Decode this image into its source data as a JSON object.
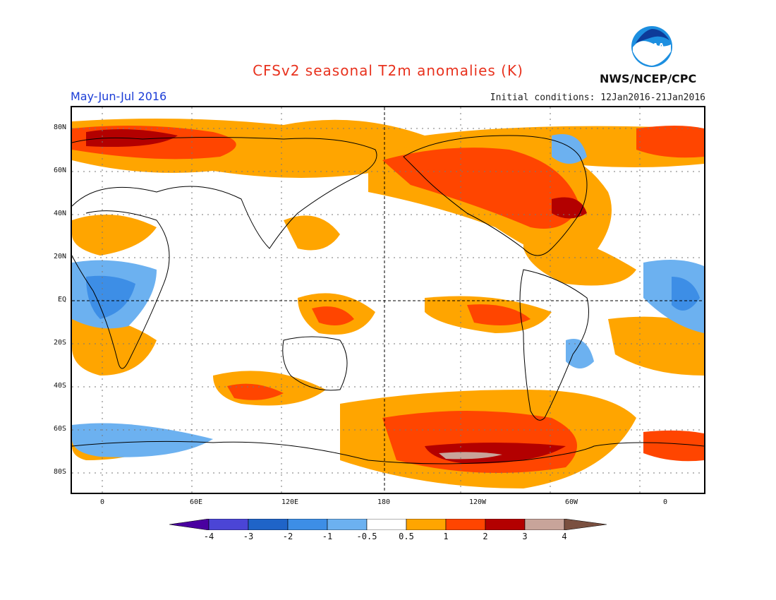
{
  "header": {
    "title": "CFSv2 seasonal T2m anomalies (K)",
    "season": "May-Jun-Jul 2016",
    "initial_conditions": "Initial conditions: 12Jan2016-21Jan2016",
    "agency": "NWS/NCEP/CPC",
    "logo_text": "NOAA"
  },
  "map": {
    "lat_labels": [
      "80N",
      "60N",
      "40N",
      "20N",
      "EQ",
      "20S",
      "40S",
      "60S",
      "80S"
    ],
    "lon_labels": [
      "0",
      "60E",
      "120E",
      "180",
      "120W",
      "60W",
      "0"
    ],
    "colors": {
      "warm1": "#ffa500",
      "warm2": "#ff4500",
      "warm3": "#b30000",
      "warm4": "#c8a49a",
      "cool1": "#6cb1f0",
      "cool2": "#3d8ee6",
      "cool3": "#1f64c8"
    }
  },
  "colorbar": {
    "labels": [
      "-4",
      "-3",
      "-2",
      "-1",
      "-0.5",
      "0.5",
      "1",
      "2",
      "3",
      "4"
    ],
    "colors": [
      "#4a00a0",
      "#4b45d6",
      "#1f64c8",
      "#3d8ee6",
      "#6cb1f0",
      "#ffffff",
      "#ffa500",
      "#ff4500",
      "#b30000",
      "#c8a49a",
      "#7a5040"
    ]
  }
}
